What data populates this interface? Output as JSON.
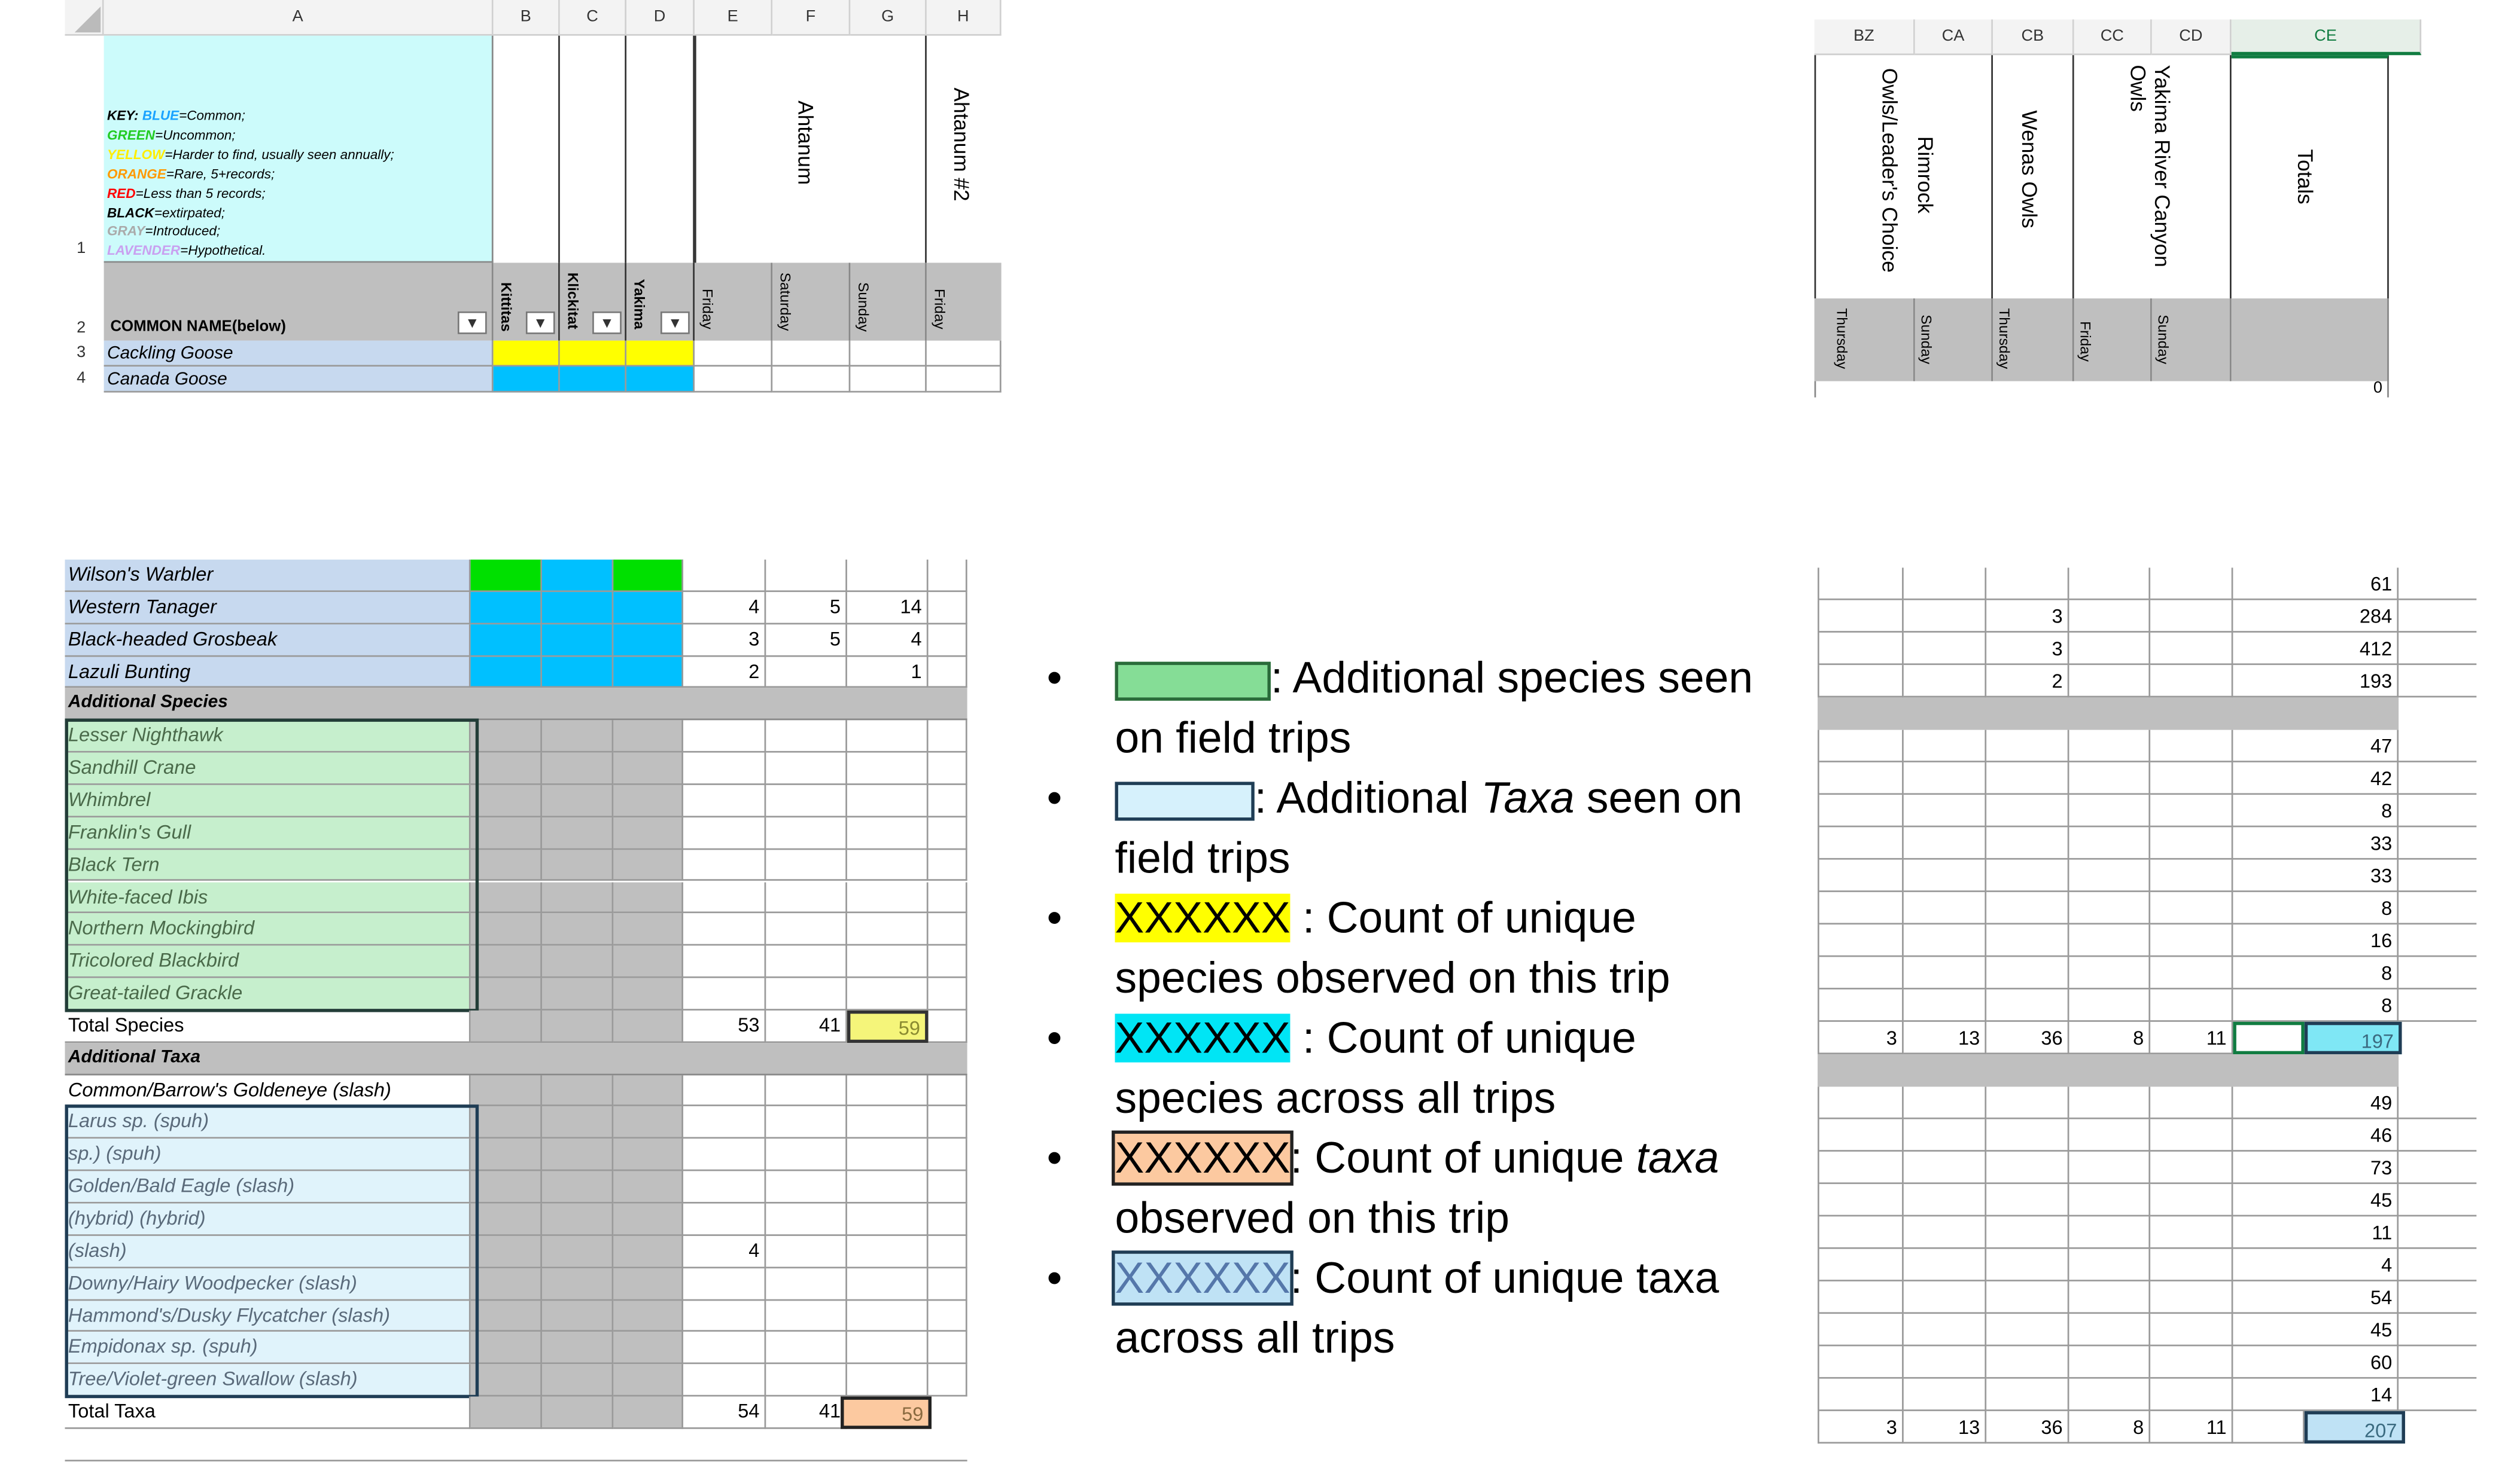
{
  "top_left": {
    "columns": [
      "A",
      "B",
      "C",
      "D",
      "E",
      "F",
      "G",
      "H"
    ],
    "rows": [
      "1",
      "2",
      "3",
      "4"
    ],
    "key": [
      {
        "label": "KEY:",
        "word": "BLUE",
        "rest": "=Common;",
        "color": "#1aa3ff"
      },
      {
        "label": "",
        "word": "GREEN",
        "rest": "=Uncommon;",
        "color": "#22cc22"
      },
      {
        "label": "",
        "word": "YELLOW",
        "rest": "=Harder to find, usually seen annually;",
        "color": "#ffee00"
      },
      {
        "label": "",
        "word": "ORANGE",
        "rest": "=Rare, 5+records;",
        "color": "#ff9900"
      },
      {
        "label": "",
        "word": "RED",
        "rest": "=Less than 5 records;",
        "color": "#ff0000"
      },
      {
        "label": "",
        "word": "BLACK",
        "rest": "=extirpated;",
        "color": "#000000"
      },
      {
        "label": "",
        "word": "GRAY",
        "rest": "=Introduced;",
        "color": "#aaaaaa"
      },
      {
        "label": "",
        "word": "LAVENDER",
        "rest": "=Hypothetical.",
        "color": "#c9a0f0"
      }
    ],
    "common_name_header": "COMMON NAME(below)",
    "county_headers": [
      "Kittitas",
      "Klickitat",
      "Yakima"
    ],
    "site_headers": [
      "Ahtanum",
      "Ahtanum #2"
    ],
    "day_headers": [
      "Friday",
      "Saturday",
      "Sunday",
      "Friday"
    ],
    "species": [
      "Cackling Goose",
      "Canada Goose"
    ]
  },
  "top_right": {
    "columns": [
      "BZ",
      "CA",
      "CB",
      "CC",
      "CD",
      "CE"
    ],
    "site_headers": [
      "Owls/Leader's Choice",
      "Rimrock",
      "Wenas Owls",
      "Yakima River Canyon Owls",
      "Totals"
    ],
    "day_headers": [
      "Thursday",
      "Sunday",
      "Thursday",
      "Friday",
      "Sunday"
    ],
    "first_total": "0"
  },
  "bottom_left": {
    "species_rows": [
      {
        "name": "Wilson's Warbler",
        "e": "",
        "f": "",
        "g": ""
      },
      {
        "name": "Western Tanager",
        "e": "4",
        "f": "5",
        "g": "14"
      },
      {
        "name": "Black-headed Grosbeak",
        "e": "3",
        "f": "5",
        "g": "4"
      },
      {
        "name": "Lazuli Bunting",
        "e": "2",
        "f": "",
        "g": "1"
      }
    ],
    "additional_species_header": "Additional Species",
    "additional_species": [
      "Lesser Nighthawk",
      "Sandhill Crane",
      "Whimbrel",
      "Franklin's Gull",
      "Black Tern",
      "White-faced Ibis",
      "Northern Mockingbird",
      "Tricolored Blackbird",
      "Great-tailed Grackle"
    ],
    "total_species": {
      "label": "Total Species",
      "e": "53",
      "f": "41",
      "g": "59"
    },
    "additional_taxa_header": "Additional Taxa",
    "additional_taxa": [
      {
        "name": "Common/Barrow's Goldeneye (slash)",
        "e": ""
      },
      {
        "name": "Larus sp. (spuh)",
        "e": ""
      },
      {
        "name": "sp.) (spuh)",
        "e": ""
      },
      {
        "name": "Golden/Bald Eagle (slash)",
        "e": ""
      },
      {
        "name": "(hybrid) (hybrid)",
        "e": ""
      },
      {
        "name": "(slash)",
        "e": "4"
      },
      {
        "name": "Downy/Hairy Woodpecker (slash)",
        "e": ""
      },
      {
        "name": "Hammond's/Dusky Flycatcher (slash)",
        "e": ""
      },
      {
        "name": "Empidonax sp. (spuh)",
        "e": ""
      },
      {
        "name": "Tree/Violet-green Swallow (slash)",
        "e": ""
      }
    ],
    "total_taxa": {
      "label": "Total Taxa",
      "e": "54",
      "f": "41",
      "g": "59"
    }
  },
  "bottom_right": {
    "species_totals": [
      "61",
      "284",
      "412",
      "193"
    ],
    "species_cb": [
      "",
      "3",
      "3",
      "2"
    ],
    "additional_totals": [
      "47",
      "42",
      "8",
      "33",
      "33",
      "8",
      "16",
      "8",
      "8"
    ],
    "total_species_row": [
      "3",
      "13",
      "36",
      "8",
      "11",
      "",
      "197"
    ],
    "taxa_totals": [
      "49",
      "46",
      "73",
      "45",
      "11",
      "4",
      "54",
      "45",
      "60",
      "14"
    ],
    "total_taxa_row": [
      "3",
      "13",
      "36",
      "8",
      "11",
      "207"
    ]
  },
  "legend": {
    "items": [
      {
        "swatch_text": "",
        "text": ": Additional species seen on field trips",
        "swatch_color": "#85dd96",
        "border": "#2a6b3a"
      },
      {
        "swatch_text": "",
        "text_a": ": Additional ",
        "text_em": "Taxa",
        "text_b": " seen on field trips",
        "swatch_color": "#d6f1fc",
        "border": "#1f3d55"
      },
      {
        "swatch_text": "XXXXXX",
        "text": " : Count of unique species observed on this trip",
        "swatch_color": "#ffff00",
        "border": "#ffff00"
      },
      {
        "swatch_text": "XXXXXX",
        "text": " : Count of unique species across all trips",
        "swatch_color": "#00e5f5",
        "border": "#00e5f5"
      },
      {
        "swatch_text": "XXXXXX",
        "text_a": ": Count of unique ",
        "text_em": "taxa",
        "text_b": " observed on this trip",
        "swatch_color": "#fcc9a0",
        "border": "#222222"
      },
      {
        "swatch_text": "XXXXXX",
        "text": ": Count of unique taxa across all trips",
        "swatch_color": "#bfe2f5",
        "border": "#1f3d55"
      }
    ]
  }
}
